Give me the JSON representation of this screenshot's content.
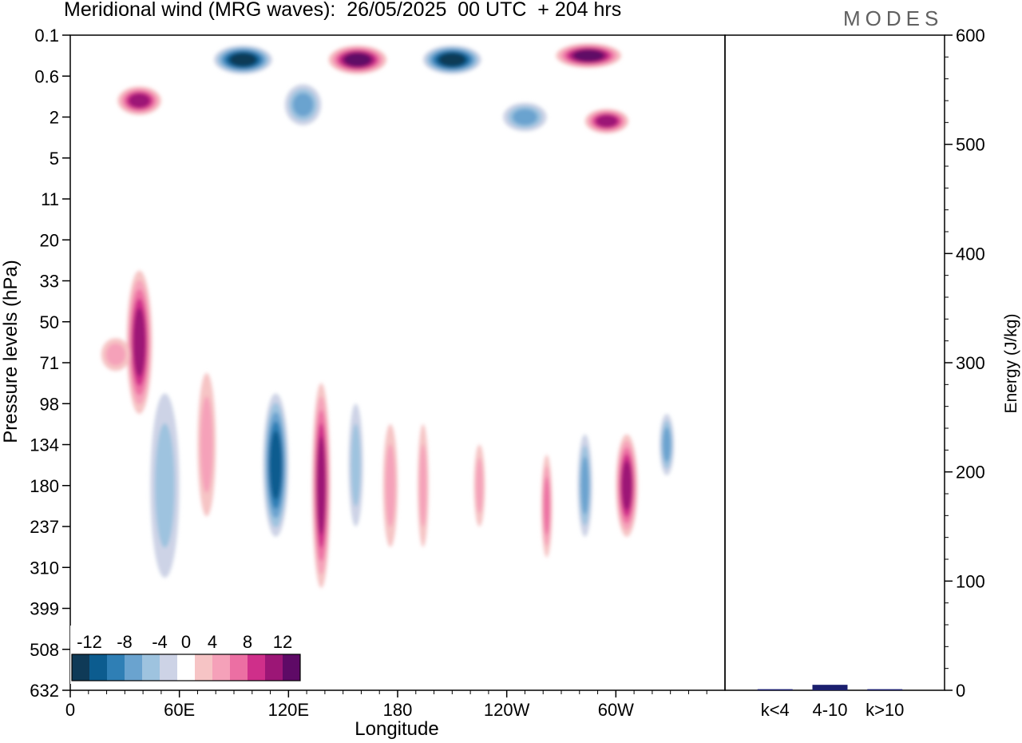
{
  "header": {
    "title": "Meridional wind (MRG waves):  26/05/2025  00 UTC  + 204 hrs",
    "logo": "MODES"
  },
  "chart_data": [
    {
      "type": "heatmap",
      "title": "Meridional wind (MRG waves):  26/05/2025  00 UTC  + 204 hrs",
      "xlabel": "Longitude",
      "ylabel": "Pressure levels (hPa)",
      "x_ticks": [
        "0",
        "60E",
        "120E",
        "180",
        "120W",
        "60W"
      ],
      "x_tick_degrees": [
        0,
        60,
        120,
        180,
        240,
        300
      ],
      "xlim": [
        0,
        360
      ],
      "y_ticks": [
        "0.1",
        "0.6",
        "2",
        "5",
        "11",
        "20",
        "33",
        "50",
        "71",
        "98",
        "134",
        "180",
        "237",
        "310",
        "399",
        "508",
        "632"
      ],
      "y_scale": "categorical pressure levels, top to bottom",
      "colorbar": {
        "tick_labels": [
          "-12",
          "-8",
          "-4",
          "0",
          "4",
          "8",
          "12"
        ],
        "bounds": [
          -14,
          -12,
          -10,
          -8,
          -6,
          -4,
          -2,
          2,
          4,
          6,
          8,
          10,
          12,
          14
        ],
        "colors": [
          "#0f3a57",
          "#0c5c8f",
          "#2f7fb5",
          "#6aa3cf",
          "#9ec3df",
          "#cdd3e6",
          "#ffffff",
          "#f6c4c5",
          "#f5a1b9",
          "#ec6fa3",
          "#cf2f8a",
          "#9c1676",
          "#5e0a66"
        ],
        "placement": "bottom-left"
      },
      "features": [
        {
          "lon": 38,
          "level": 7.5,
          "value": 10,
          "lon_width": 7,
          "level_height": 3.5
        },
        {
          "lon": 52,
          "level": 11,
          "value": -4,
          "lon_width": 8,
          "level_height": 4.5
        },
        {
          "lon": 75,
          "level": 10,
          "value": 5,
          "lon_width": 5,
          "level_height": 3.5
        },
        {
          "lon": 113,
          "level": 10.5,
          "value": -11,
          "lon_width": 7,
          "level_height": 3.5
        },
        {
          "lon": 138,
          "level": 11,
          "value": 10,
          "lon_width": 5,
          "level_height": 5
        },
        {
          "lon": 157,
          "level": 10.5,
          "value": -5,
          "lon_width": 4,
          "level_height": 3
        },
        {
          "lon": 176,
          "level": 11,
          "value": 5,
          "lon_width": 4,
          "level_height": 3
        },
        {
          "lon": 194,
          "level": 11,
          "value": 4,
          "lon_width": 3,
          "level_height": 3
        },
        {
          "lon": 225,
          "level": 11,
          "value": 5,
          "lon_width": 3,
          "level_height": 2
        },
        {
          "lon": 262,
          "level": 11.5,
          "value": 6,
          "lon_width": 3,
          "level_height": 2.5
        },
        {
          "lon": 283,
          "level": 11,
          "value": -6,
          "lon_width": 4,
          "level_height": 2.5
        },
        {
          "lon": 306,
          "level": 11,
          "value": 11,
          "lon_width": 6,
          "level_height": 2.5
        },
        {
          "lon": 328,
          "level": 10,
          "value": -6,
          "lon_width": 4,
          "level_height": 1.5
        },
        {
          "lon": 95,
          "level": 0.6,
          "value": -13,
          "lon_width": 16,
          "level_height": 0.7
        },
        {
          "lon": 158,
          "level": 0.6,
          "value": 13,
          "lon_width": 16,
          "level_height": 0.7
        },
        {
          "lon": 210,
          "level": 0.6,
          "value": -13,
          "lon_width": 16,
          "level_height": 0.7
        },
        {
          "lon": 285,
          "level": 0.5,
          "value": 12,
          "lon_width": 18,
          "level_height": 0.6
        },
        {
          "lon": 38,
          "level": 1.6,
          "value": 10,
          "lon_width": 12,
          "level_height": 0.7
        },
        {
          "lon": 128,
          "level": 1.7,
          "value": -6,
          "lon_width": 10,
          "level_height": 1
        },
        {
          "lon": 250,
          "level": 2,
          "value": -6,
          "lon_width": 12,
          "level_height": 0.7
        },
        {
          "lon": 295,
          "level": 2.1,
          "value": 10,
          "lon_width": 12,
          "level_height": 0.6
        },
        {
          "lon": 25,
          "level": 7.8,
          "value": 5,
          "lon_width": 8,
          "level_height": 0.8
        }
      ]
    },
    {
      "type": "bar",
      "categories": [
        "k<4",
        "4-10",
        "k>10"
      ],
      "values": [
        1,
        5,
        1
      ],
      "ylabel": "Energy (J/kg)",
      "ylim": [
        0,
        600
      ],
      "y_ticks": [
        0,
        100,
        200,
        300,
        400,
        500,
        600
      ],
      "bar_color": "#1b1f6e"
    }
  ]
}
